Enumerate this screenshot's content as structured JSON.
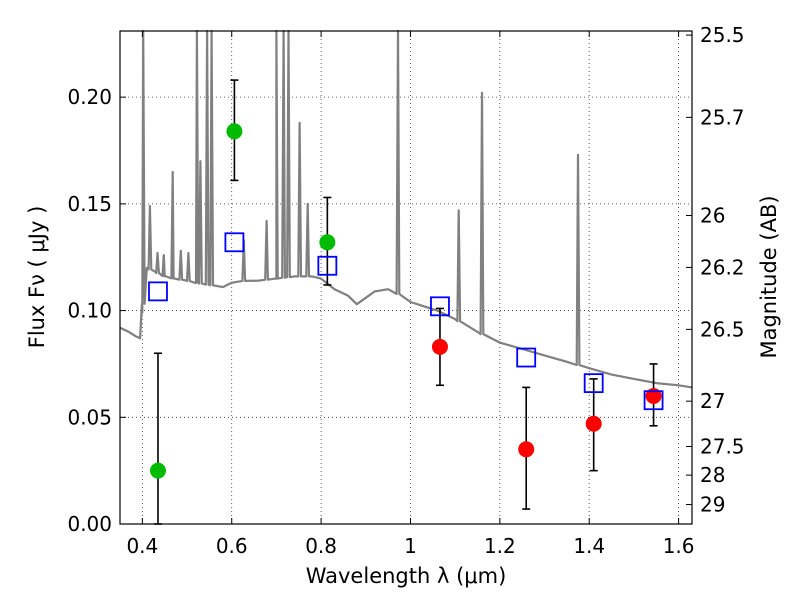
{
  "chart_data": {
    "type": "scatter",
    "xlabel": "Wavelength  λ (μm)",
    "ylabel": "Flux  Fν  ( μJy )",
    "y2label": "Magnitude (AB)",
    "xlim": [
      0.35,
      1.63
    ],
    "ylim": [
      0.0,
      0.231
    ],
    "grid": true,
    "x_ticks": [
      0.4,
      0.6,
      0.8,
      1.0,
      1.2,
      1.4,
      1.6
    ],
    "x_tick_labels": [
      "0.4",
      "0.6",
      "0.8",
      "1",
      "1.2",
      "1.4",
      "1.6"
    ],
    "y_ticks": [
      0.0,
      0.05,
      0.1,
      0.15,
      0.2
    ],
    "y_tick_labels": [
      "0.00",
      "0.05",
      "0.10",
      "0.15",
      "0.20"
    ],
    "y2_ticks": [
      "25.5",
      "25.7",
      "26",
      "26.2",
      "26.5",
      "27",
      "27.5",
      "28",
      "29"
    ],
    "colors": {
      "model": "#808080",
      "green": "#00bb00",
      "red": "#ff0000",
      "model_box": "#0000ff",
      "errorbar": "#000000"
    },
    "series": [
      {
        "marker": "circle",
        "color": "#00bb00",
        "points": [
          {
            "x": 0.435,
            "y": 0.025,
            "err_low": 0.0,
            "err_high": 0.08
          },
          {
            "x": 0.606,
            "y": 0.184,
            "err_low": 0.161,
            "err_high": 0.208
          },
          {
            "x": 0.814,
            "y": 0.132,
            "err_low": 0.112,
            "err_high": 0.153
          }
        ]
      },
      {
        "marker": "circle",
        "color": "#ff0000",
        "points": [
          {
            "x": 1.066,
            "y": 0.083,
            "err_low": 0.065,
            "err_high": 0.101
          },
          {
            "x": 1.259,
            "y": 0.035,
            "err_low": 0.007,
            "err_high": 0.064
          },
          {
            "x": 1.41,
            "y": 0.047,
            "err_low": 0.025,
            "err_high": 0.068
          },
          {
            "x": 1.544,
            "y": 0.06,
            "err_low": 0.046,
            "err_high": 0.075
          }
        ]
      },
      {
        "marker": "open-square",
        "color": "#0000ff",
        "points": [
          {
            "x": 0.435,
            "y": 0.109
          },
          {
            "x": 0.606,
            "y": 0.132
          },
          {
            "x": 0.814,
            "y": 0.121
          },
          {
            "x": 1.066,
            "y": 0.102
          },
          {
            "x": 1.259,
            "y": 0.078
          },
          {
            "x": 1.41,
            "y": 0.066
          },
          {
            "x": 1.544,
            "y": 0.058
          }
        ]
      }
    ],
    "model_spectrum": [
      [
        0.35,
        0.092
      ],
      [
        0.37,
        0.09
      ],
      [
        0.385,
        0.088
      ],
      [
        0.395,
        0.087
      ],
      [
        0.4,
        0.099
      ],
      [
        0.41,
        0.12
      ],
      [
        0.43,
        0.118
      ],
      [
        0.45,
        0.116
      ],
      [
        0.47,
        0.115
      ],
      [
        0.5,
        0.114
      ],
      [
        0.52,
        0.113
      ],
      [
        0.55,
        0.112
      ],
      [
        0.58,
        0.111
      ],
      [
        0.6,
        0.113
      ],
      [
        0.63,
        0.114
      ],
      [
        0.66,
        0.114
      ],
      [
        0.7,
        0.115
      ],
      [
        0.74,
        0.116
      ],
      [
        0.78,
        0.116
      ],
      [
        0.8,
        0.115
      ],
      [
        0.83,
        0.11
      ],
      [
        0.86,
        0.107
      ],
      [
        0.88,
        0.103
      ],
      [
        0.9,
        0.106
      ],
      [
        0.92,
        0.109
      ],
      [
        0.95,
        0.11
      ],
      [
        0.98,
        0.107
      ],
      [
        1.0,
        0.104
      ],
      [
        1.03,
        0.102
      ],
      [
        1.06,
        0.1
      ],
      [
        1.1,
        0.096
      ],
      [
        1.15,
        0.09
      ],
      [
        1.2,
        0.085
      ],
      [
        1.25,
        0.082
      ],
      [
        1.3,
        0.079
      ],
      [
        1.35,
        0.076
      ],
      [
        1.4,
        0.073
      ],
      [
        1.45,
        0.07
      ],
      [
        1.5,
        0.068
      ],
      [
        1.55,
        0.066
      ],
      [
        1.6,
        0.065
      ],
      [
        1.63,
        0.064
      ]
    ],
    "emission_lines": [
      [
        0.402,
        0.231
      ],
      [
        0.417,
        0.149
      ],
      [
        0.434,
        0.127
      ],
      [
        0.448,
        0.126
      ],
      [
        0.468,
        0.165
      ],
      [
        0.486,
        0.128
      ],
      [
        0.503,
        0.127
      ],
      [
        0.522,
        0.231
      ],
      [
        0.53,
        0.17
      ],
      [
        0.545,
        0.231
      ],
      [
        0.555,
        0.231
      ],
      [
        0.627,
        0.133
      ],
      [
        0.678,
        0.142
      ],
      [
        0.7,
        0.231
      ],
      [
        0.716,
        0.231
      ],
      [
        0.727,
        0.231
      ],
      [
        0.752,
        0.188
      ],
      [
        0.77,
        0.15
      ],
      [
        0.972,
        0.231
      ],
      [
        1.108,
        0.147
      ],
      [
        1.16,
        0.202
      ],
      [
        1.375,
        0.173
      ]
    ]
  }
}
